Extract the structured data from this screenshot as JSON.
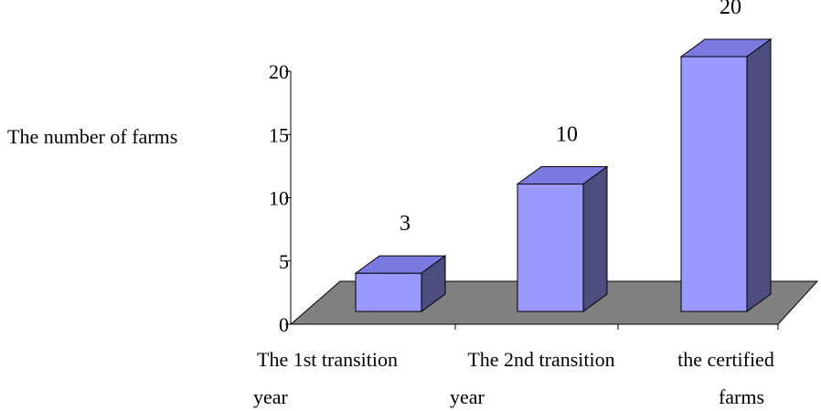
{
  "chart_data": {
    "type": "bar",
    "title": "",
    "ylabel": "The number of farms",
    "xlabel": "",
    "ylim": [
      0,
      20
    ],
    "yticks": [
      0,
      5,
      10,
      15,
      20
    ],
    "categories": [
      [
        "The 1st transition",
        "year"
      ],
      [
        "The 2nd transition",
        "year"
      ],
      [
        "the certified",
        "farms"
      ]
    ],
    "values": [
      3,
      10,
      20
    ],
    "data_labels": [
      "3",
      "10",
      "20"
    ],
    "grid": false,
    "three_d": true,
    "colors": {
      "bar_front": "#9999ff",
      "bar_top": "#7a7ae0",
      "bar_side": "#4d4d80",
      "floor": "#808080",
      "axis": "#000000"
    }
  }
}
